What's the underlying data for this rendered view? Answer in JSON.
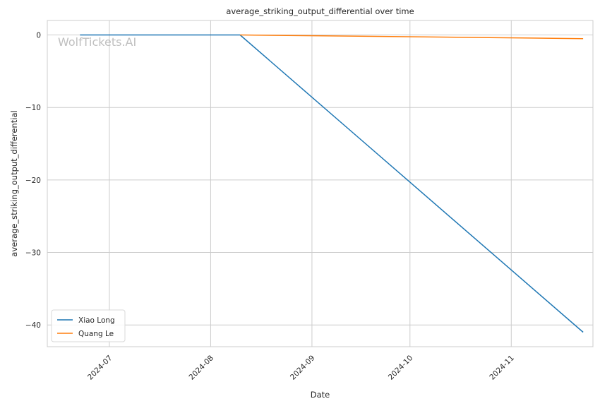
{
  "chart_data": {
    "type": "line",
    "title": "average_striking_output_differential over time",
    "xlabel": "Date",
    "ylabel": "average_striking_output_differential",
    "watermark": "WolfTickets.AI",
    "x_ticks": [
      "2024-07",
      "2024-08",
      "2024-09",
      "2024-10",
      "2024-11"
    ],
    "y_ticks": [
      0,
      -10,
      -20,
      -30,
      -40
    ],
    "y_tick_labels": [
      "0",
      "−10",
      "−20",
      "−30",
      "−40"
    ],
    "ylim": [
      -43,
      2
    ],
    "xlim": [
      "2024-06-12",
      "2024-11-26"
    ],
    "grid": true,
    "legend_position": "lower-left",
    "series": [
      {
        "name": "Xiao Long",
        "color": "#1f77b4",
        "points": [
          {
            "x": "2024-06-22",
            "y": 0
          },
          {
            "x": "2024-08-10",
            "y": 0
          },
          {
            "x": "2024-11-23",
            "y": -41
          }
        ]
      },
      {
        "name": "Quang Le",
        "color": "#ff7f0e",
        "points": [
          {
            "x": "2024-08-10",
            "y": 0
          },
          {
            "x": "2024-11-23",
            "y": -0.5
          }
        ]
      }
    ]
  }
}
